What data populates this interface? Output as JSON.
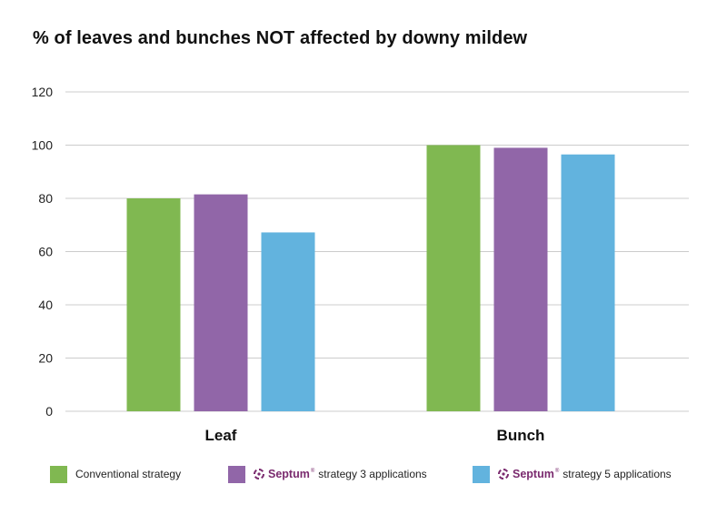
{
  "title": "% of leaves and bunches NOT affected by downy mildew",
  "colors": {
    "conventional": "#80b851",
    "septum3": "#9166a8",
    "septum5": "#62b3de",
    "grid": "#cccccc",
    "brand": "#7a2a6e"
  },
  "legend": {
    "item1": {
      "label": "Conventional strategy",
      "icon": "square-swatch"
    },
    "item2": {
      "brand": "Septum",
      "label": "strategy 3 applications",
      "icon": "septum-logo-icon"
    },
    "item3": {
      "brand": "Septum",
      "label": "strategy 5 applications",
      "icon": "septum-logo-icon"
    },
    "placement": "bottom"
  },
  "chart_data": {
    "type": "bar",
    "title": "% of leaves and bunches NOT affected by downy mildew",
    "categories": [
      "Leaf",
      "Bunch"
    ],
    "series": [
      {
        "name": "Conventional strategy",
        "values": [
          80,
          100
        ]
      },
      {
        "name": "Septum strategy 3 applications",
        "values": [
          81.5,
          99
        ]
      },
      {
        "name": "Septum strategy 5 applications",
        "values": [
          67.2,
          96.5
        ]
      }
    ],
    "ylim": [
      0,
      120
    ],
    "yticks": [
      "0",
      "20",
      "40",
      "60",
      "80",
      "100",
      "120"
    ],
    "xlabel": "",
    "ylabel": "",
    "grid": true,
    "legend_placement": "bottom"
  }
}
